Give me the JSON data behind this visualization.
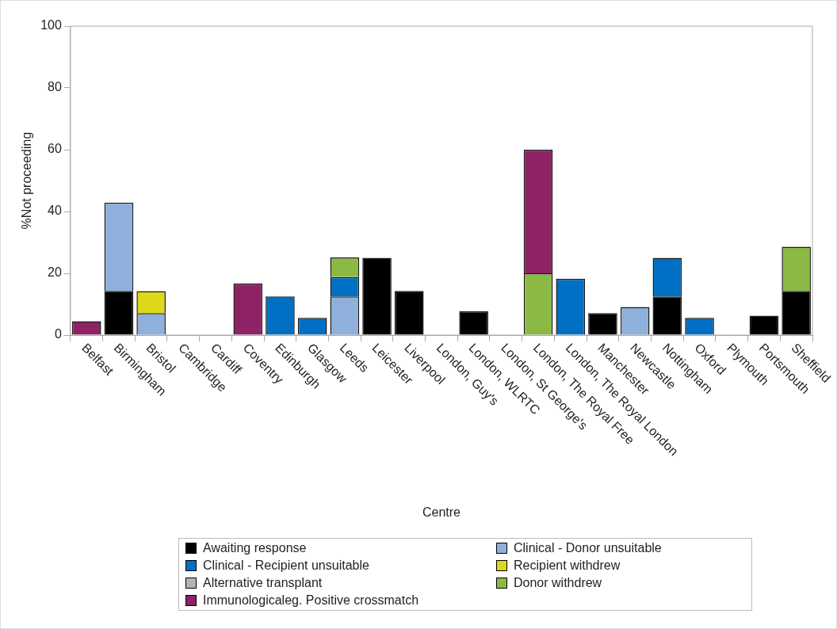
{
  "chart_data": {
    "type": "bar",
    "stacked": true,
    "xlabel": "Centre",
    "ylabel": "%Not proceeding",
    "categories": [
      "Belfast",
      "Birmingham",
      "Bristol",
      "Cambridge",
      "Cardiff",
      "Coventry",
      "Edinburgh",
      "Glasgow",
      "Leeds",
      "Leicester",
      "Liverpool",
      "London, Guy's",
      "London, WLRTC",
      "London, St George's",
      "London, The Royal Free",
      "London, The Royal London",
      "Manchester",
      "Newcastle",
      "Nottingham",
      "Oxford",
      "Plymouth",
      "Portsmouth",
      "Sheffield"
    ],
    "series": [
      {
        "name": "Awaiting response",
        "color": "#000000",
        "values": [
          0,
          14.3,
          0,
          0,
          0,
          0,
          0,
          0,
          0,
          25,
          14.3,
          0,
          7.7,
          0,
          0,
          0,
          7.1,
          0,
          12.5,
          0,
          0,
          6.3,
          14.3
        ]
      },
      {
        "name": "Clinical - Donor unsuitable",
        "color": "#8fb0da",
        "values": [
          0,
          28.6,
          7.1,
          0,
          0,
          0,
          0,
          0,
          12.5,
          0,
          0,
          0,
          0,
          0,
          0,
          0,
          0,
          9.1,
          0,
          0,
          0,
          0,
          0
        ]
      },
      {
        "name": "Clinical - Recipient unsuitable",
        "color": "#0070c4",
        "values": [
          0,
          0,
          0,
          0,
          0,
          0,
          12.5,
          5.6,
          6.3,
          0,
          0,
          0,
          0,
          0,
          0,
          18.2,
          0,
          0,
          12.5,
          5.6,
          0,
          0,
          0
        ]
      },
      {
        "name": "Recipient withdrew",
        "color": "#dcd91a",
        "values": [
          0,
          0,
          7.1,
          0,
          0,
          0,
          0,
          0,
          0,
          0,
          0,
          0,
          0,
          0,
          0,
          0,
          0,
          0,
          0,
          0,
          0,
          0,
          0
        ]
      },
      {
        "name": "Alternative transplant",
        "color": "#b4b4b4",
        "values": [
          0,
          0,
          0,
          0,
          0,
          0,
          0,
          0,
          0,
          0,
          0,
          0,
          0,
          0,
          0,
          0,
          0,
          0,
          0,
          0,
          0,
          0,
          0
        ]
      },
      {
        "name": "Donor withdrew",
        "color": "#8cb944",
        "values": [
          0,
          0,
          0,
          0,
          0,
          0,
          0,
          0,
          6.3,
          0,
          0,
          0,
          0,
          0,
          20,
          0,
          0,
          0,
          0,
          0,
          0,
          0,
          14.3
        ]
      },
      {
        "name": "Immunologicaleg. Positive crossmatch",
        "color": "#8e2265",
        "values": [
          4.5,
          0,
          0,
          0,
          0,
          16.7,
          0,
          0,
          0,
          0,
          0,
          0,
          0,
          0,
          40,
          0,
          0,
          0,
          0,
          0,
          0,
          0,
          0
        ]
      }
    ],
    "ylim": [
      0,
      100
    ],
    "yticks": [
      0,
      20,
      40,
      60,
      80,
      100
    ],
    "grid": false,
    "legend": "bottom"
  }
}
